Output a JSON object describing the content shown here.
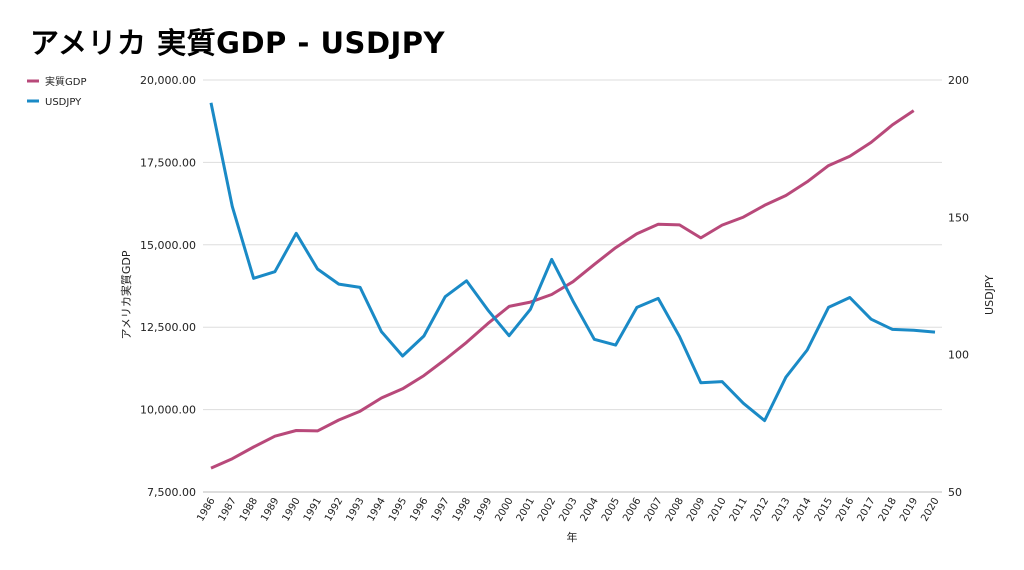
{
  "chart_data": {
    "type": "line",
    "title": "アメリカ 実質GDP - USDJPY",
    "xlabel": "年",
    "ylabel_left": "アメリカ実質GDP",
    "ylabel_right": "USDJPY",
    "ylim_left": [
      7500,
      20000
    ],
    "ylim_right": [
      50,
      200
    ],
    "yticks_left": [
      "7,500.00",
      "10,000.00",
      "12,500.00",
      "15,000.00",
      "17,500.00",
      "20,000.00"
    ],
    "yticks_right": [
      "50",
      "100",
      "150",
      "200"
    ],
    "grid": true,
    "legend_position": "top-left",
    "categories": [
      "1986",
      "1987",
      "1988",
      "1989",
      "1990",
      "1991",
      "1992",
      "1993",
      "1994",
      "1995",
      "1996",
      "1997",
      "1998",
      "1999",
      "2000",
      "2001",
      "2002",
      "2003",
      "2004",
      "2005",
      "2006",
      "2007",
      "2008",
      "2009",
      "2010",
      "2011",
      "2012",
      "2013",
      "2014",
      "2015",
      "2016",
      "2017",
      "2018",
      "2019",
      "2020"
    ],
    "series": [
      {
        "name": "実質GDP",
        "axis": "left",
        "color": "#b8497a",
        "values": [
          8226,
          8511,
          8866,
          9192,
          9366,
          9355,
          9685,
          9951,
          10352,
          10630,
          11031,
          11521,
          12038,
          12610,
          13131,
          13262,
          13493,
          13879,
          14406,
          14912,
          15338,
          15626,
          15605,
          15209,
          15599,
          15841,
          16197,
          16495,
          16912,
          17404,
          17689,
          18108,
          18638,
          19073,
          null
        ]
      },
      {
        "name": "USDJPY",
        "axis": "right",
        "color": "#1a8ac6",
        "values": [
          191.7,
          153.9,
          127.8,
          130.2,
          144.2,
          131.2,
          125.7,
          124.5,
          108.4,
          99.5,
          106.8,
          121.1,
          126.9,
          116.3,
          106.9,
          116.5,
          134.7,
          119.5,
          105.6,
          103.5,
          117.2,
          120.5,
          106.6,
          89.8,
          90.2,
          82.3,
          76.0,
          91.8,
          101.7,
          117.2,
          120.8,
          112.9,
          109.2,
          108.9,
          108.2
        ]
      }
    ]
  }
}
